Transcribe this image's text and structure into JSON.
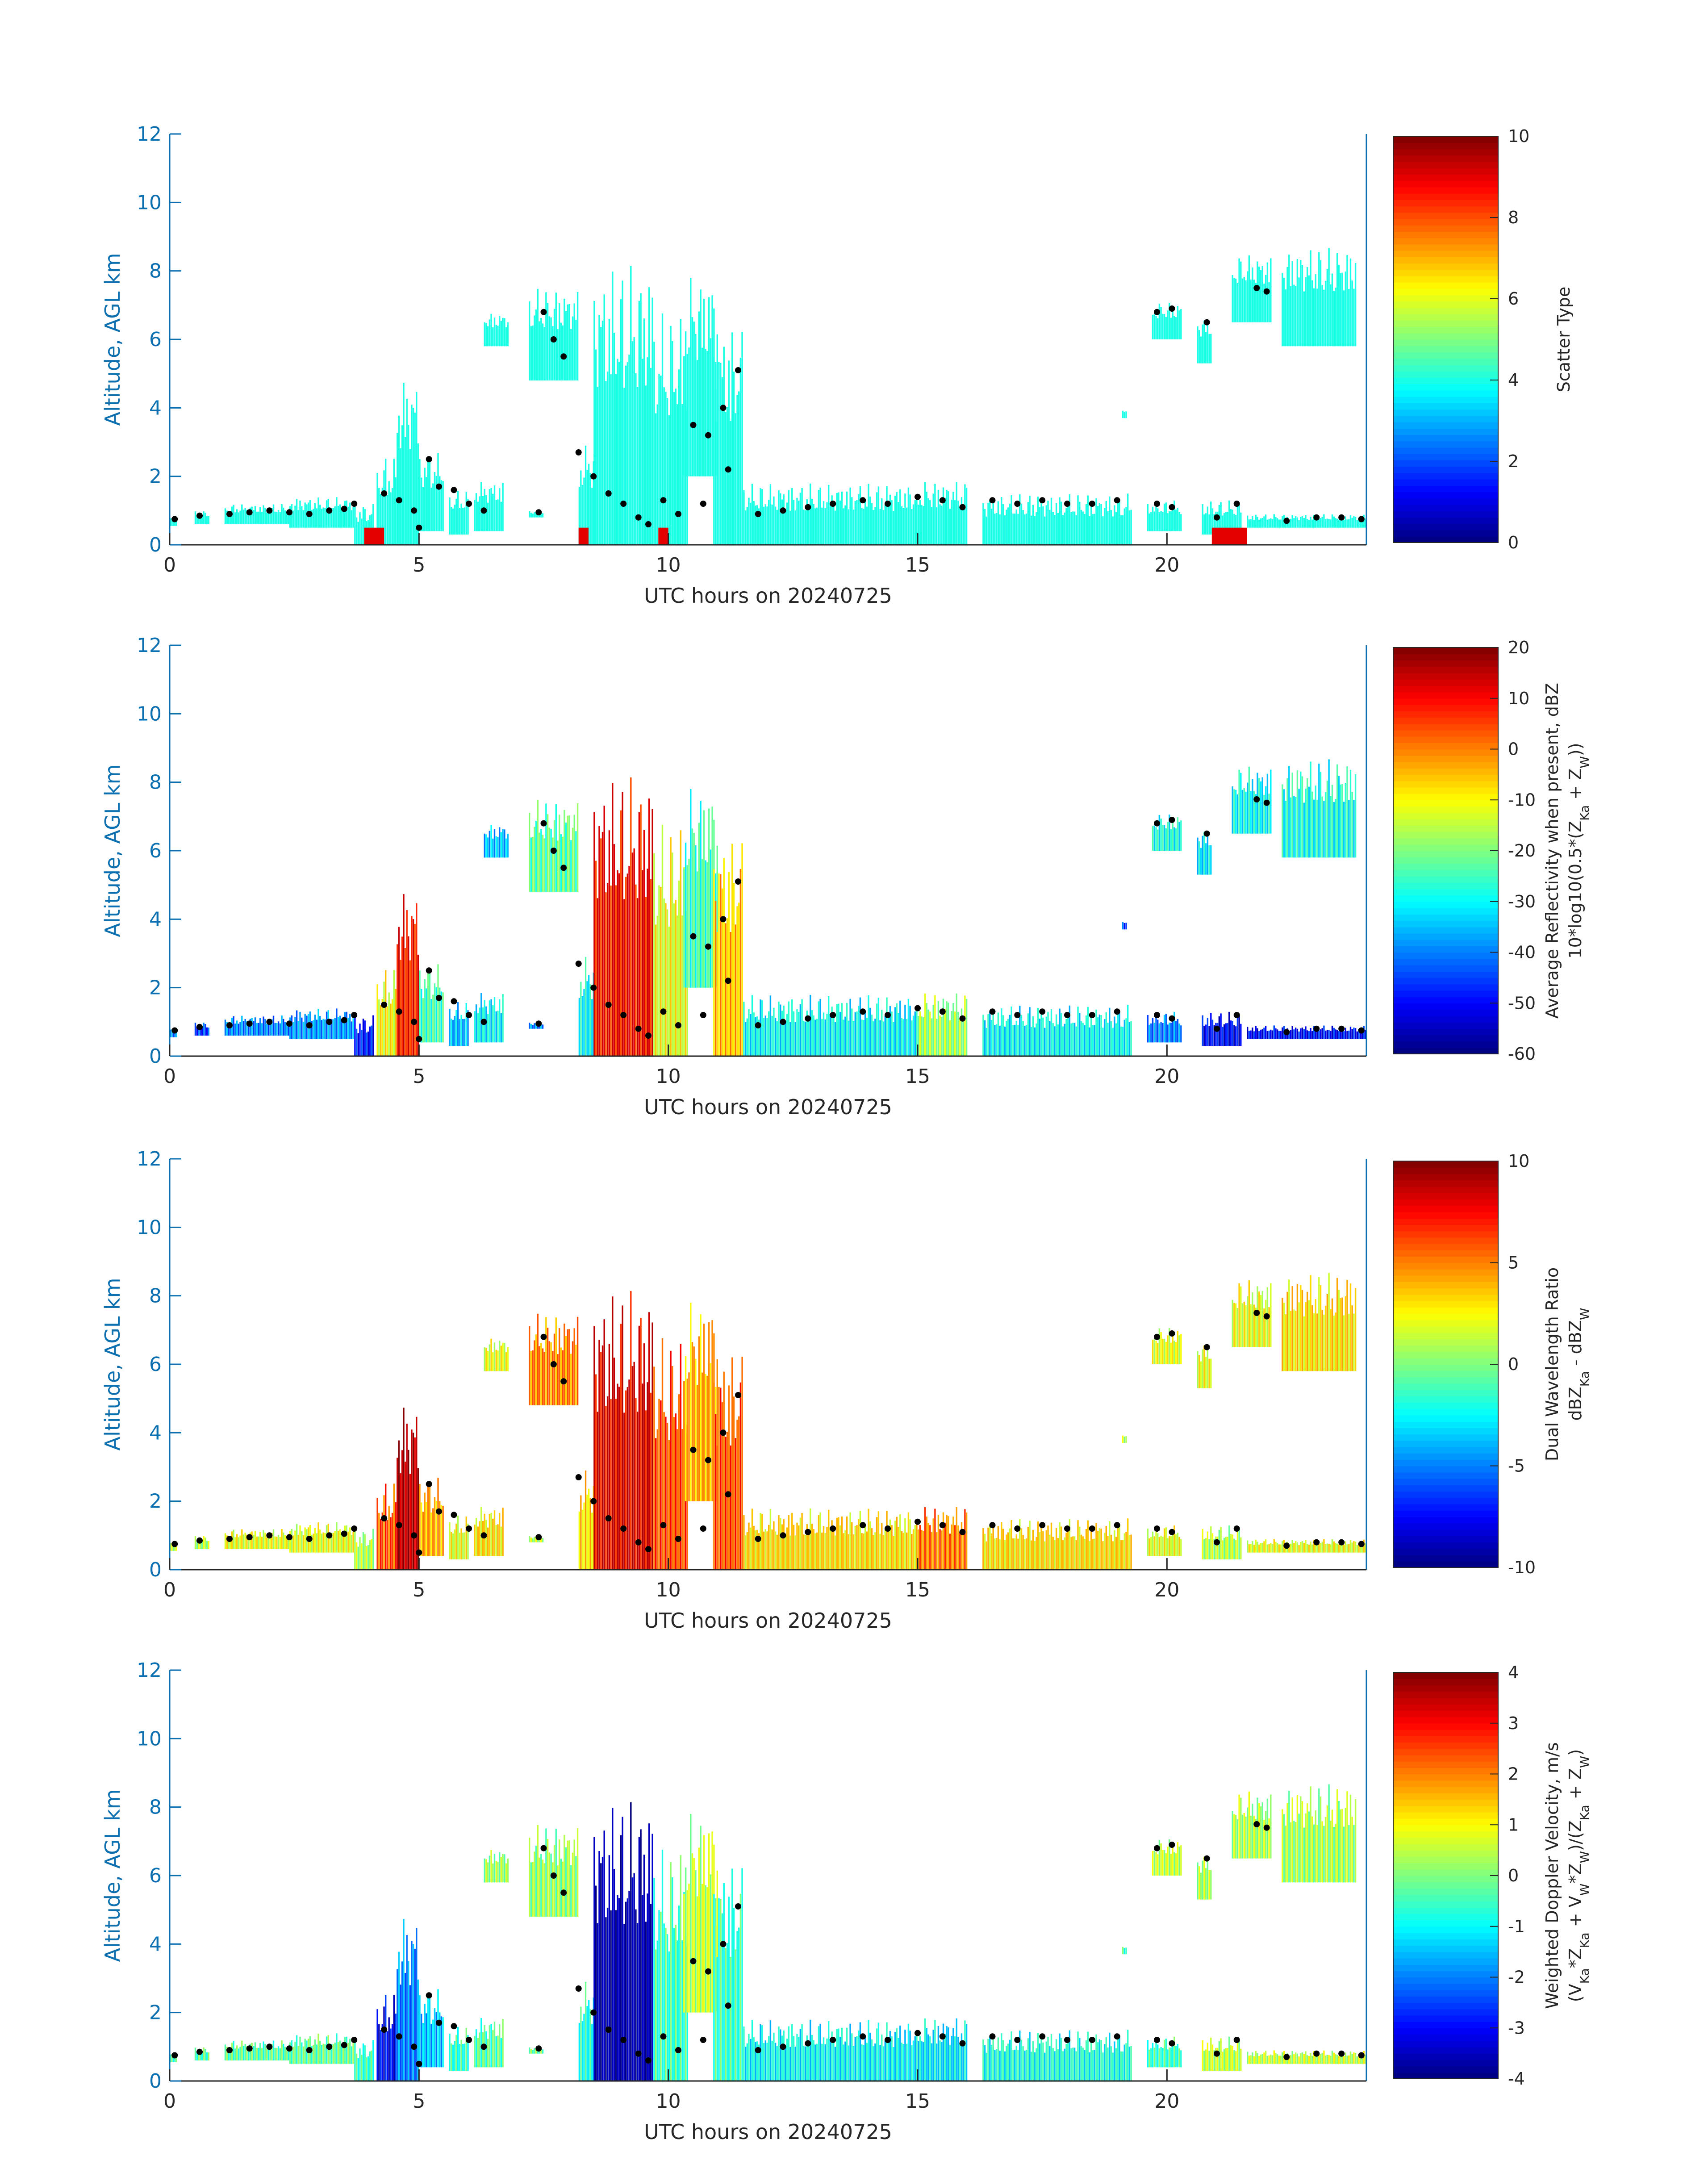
{
  "chart_data": [
    {
      "type": "heatmap",
      "panel": "scatter-type",
      "xlabel": "UTC hours on 20240725",
      "ylabel": "Altitude, AGL km",
      "xlim": [
        0,
        24
      ],
      "ylim": [
        0,
        12
      ],
      "xticks": [
        "0",
        "5",
        "10",
        "15",
        "20"
      ],
      "yticks": [
        "0",
        "2",
        "4",
        "6",
        "8",
        "10",
        "12"
      ],
      "colorbar": {
        "label_lines": [
          "Scatter Type"
        ],
        "range": [
          0,
          10
        ],
        "ticks": [
          "0",
          "2",
          "4",
          "6",
          "8",
          "10"
        ]
      },
      "field": "scatter"
    },
    {
      "type": "heatmap",
      "panel": "reflectivity",
      "xlabel": "UTC hours on 20240725",
      "ylabel": "Altitude, AGL km",
      "xlim": [
        0,
        24
      ],
      "ylim": [
        0,
        12
      ],
      "xticks": [
        "0",
        "5",
        "10",
        "15",
        "20"
      ],
      "yticks": [
        "0",
        "2",
        "4",
        "6",
        "8",
        "10",
        "12"
      ],
      "colorbar": {
        "label_lines": [
          "Average Reflectivity when present, dBZ",
          "10*log10(0.5*(Z_Ka + Z_W))"
        ],
        "range": [
          -60,
          20
        ],
        "ticks": [
          "-60",
          "-50",
          "-40",
          "-30",
          "-20",
          "-10",
          "0",
          "10",
          "20"
        ]
      },
      "field": "reflectivity"
    },
    {
      "type": "heatmap",
      "panel": "dual-wavelength-ratio",
      "xlabel": "UTC hours on 20240725",
      "ylabel": "Altitude, AGL km",
      "xlim": [
        0,
        24
      ],
      "ylim": [
        0,
        12
      ],
      "xticks": [
        "0",
        "5",
        "10",
        "15",
        "20"
      ],
      "yticks": [
        "0",
        "2",
        "4",
        "6",
        "8",
        "10",
        "12"
      ],
      "colorbar": {
        "label_lines": [
          "Dual Wavelength Ratio",
          "dBZ_Ka - dBZ_W"
        ],
        "range": [
          -10,
          10
        ],
        "ticks": [
          "-10",
          "-5",
          "0",
          "5",
          "10"
        ]
      },
      "field": "dwr"
    },
    {
      "type": "heatmap",
      "panel": "doppler-velocity",
      "xlabel": "UTC hours on 20240725",
      "ylabel": "Altitude, AGL km",
      "xlim": [
        0,
        24
      ],
      "ylim": [
        0,
        12
      ],
      "xticks": [
        "0",
        "5",
        "10",
        "15",
        "20"
      ],
      "yticks": [
        "0",
        "2",
        "4",
        "6",
        "8",
        "10",
        "12"
      ],
      "colorbar": {
        "label_lines": [
          "Weighted Doppler Velocity, m/s",
          "(V_Ka*Z_Ka + V_W*Z_W)/(Z_Ka + Z_W)"
        ],
        "range": [
          -4,
          4
        ],
        "ticks": [
          "-4",
          "-3",
          "-2",
          "-1",
          "0",
          "1",
          "2",
          "3",
          "4"
        ]
      },
      "field": "velocity"
    }
  ],
  "cloud_features": [
    {
      "t0": 0.0,
      "t1": 0.15,
      "z0": 0.55,
      "z1": 0.85,
      "scatter": 4,
      "dbz": -40,
      "dwr": 1,
      "vel": -0.5
    },
    {
      "t0": 0.5,
      "t1": 0.8,
      "z0": 0.6,
      "z1": 1.0,
      "scatter": 4,
      "dbz": -45,
      "dwr": 1,
      "vel": -0.3
    },
    {
      "t0": 1.1,
      "t1": 2.4,
      "z0": 0.6,
      "z1": 1.2,
      "scatter": 4,
      "dbz": -40,
      "dwr": 2,
      "vel": -0.3
    },
    {
      "t0": 2.4,
      "t1": 3.7,
      "z0": 0.5,
      "z1": 1.4,
      "scatter": 4,
      "dbz": -38,
      "dwr": 2,
      "vel": -0.2
    },
    {
      "t0": 3.7,
      "t1": 4.1,
      "z0": 0.0,
      "z1": 1.2,
      "scatter": 4,
      "dbz": -48,
      "dwr": 1,
      "vel": -0.5
    },
    {
      "t0": 4.15,
      "t1": 4.55,
      "z0": 0.0,
      "z1": 2.6,
      "scatter": 4,
      "dbz": -10,
      "dwr": 6,
      "vel": -3.0
    },
    {
      "t0": 4.55,
      "t1": 5.0,
      "z0": 0.0,
      "z1": 5.0,
      "scatter": 4,
      "dbz": 8,
      "dwr": 9,
      "vel": -2.0
    },
    {
      "t0": 5.0,
      "t1": 5.5,
      "z0": 0.4,
      "z1": 2.7,
      "scatter": 4,
      "dbz": -25,
      "dwr": 4,
      "vel": -1.5
    },
    {
      "t0": 5.6,
      "t1": 6.0,
      "z0": 0.3,
      "z1": 1.6,
      "scatter": 4,
      "dbz": -35,
      "dwr": 2,
      "vel": -0.6
    },
    {
      "t0": 6.1,
      "t1": 6.7,
      "z0": 0.4,
      "z1": 1.9,
      "scatter": 4,
      "dbz": -30,
      "dwr": 3,
      "vel": -0.3
    },
    {
      "t0": 7.2,
      "t1": 7.5,
      "z0": 0.8,
      "z1": 1.0,
      "scatter": 4,
      "dbz": -40,
      "dwr": 1,
      "vel": -0.2
    },
    {
      "t0": 7.2,
      "t1": 8.2,
      "z0": 4.8,
      "z1": 7.5,
      "scatter": 4,
      "dbz": -22,
      "dwr": 5,
      "vel": 0.2
    },
    {
      "t0": 8.2,
      "t1": 8.55,
      "z0": 0.0,
      "z1": 3.0,
      "scatter": 4,
      "dbz": -30,
      "dwr": 3,
      "vel": -0.8
    },
    {
      "t0": 8.5,
      "t1": 9.7,
      "z0": 0.0,
      "z1": 8.2,
      "scatter": 4,
      "dbz": 10,
      "dwr": 8,
      "vel": -3.8
    },
    {
      "t0": 9.7,
      "t1": 10.4,
      "z0": 0.0,
      "z1": 6.8,
      "scatter": 4,
      "dbz": -12,
      "dwr": 6,
      "vel": -0.5
    },
    {
      "t0": 10.3,
      "t1": 11.0,
      "z0": 2.0,
      "z1": 8.0,
      "scatter": 4,
      "dbz": -25,
      "dwr": 4,
      "vel": 0.5
    },
    {
      "t0": 10.9,
      "t1": 11.5,
      "z0": 0.0,
      "z1": 6.5,
      "scatter": 4,
      "dbz": -5,
      "dwr": 6,
      "vel": -0.5
    },
    {
      "t0": 11.5,
      "t1": 15.0,
      "z0": 0.0,
      "z1": 1.8,
      "scatter": 4,
      "dbz": -30,
      "dwr": 3,
      "vel": -1.0
    },
    {
      "t0": 15.0,
      "t1": 16.0,
      "z0": 0.0,
      "z1": 1.9,
      "scatter": 4,
      "dbz": -18,
      "dwr": 5,
      "vel": -1.2
    },
    {
      "t0": 16.3,
      "t1": 19.3,
      "z0": 0.0,
      "z1": 1.5,
      "scatter": 4,
      "dbz": -30,
      "dwr": 3,
      "vel": -0.8
    },
    {
      "t0": 19.6,
      "t1": 20.3,
      "z0": 0.4,
      "z1": 1.3,
      "scatter": 4,
      "dbz": -40,
      "dwr": 2,
      "vel": -0.5
    },
    {
      "t0": 19.7,
      "t1": 20.3,
      "z0": 6.0,
      "z1": 7.1,
      "scatter": 4,
      "dbz": -28,
      "dwr": 2,
      "vel": 0.5
    },
    {
      "t0": 20.6,
      "t1": 20.9,
      "z0": 5.3,
      "z1": 6.7,
      "scatter": 4,
      "dbz": -32,
      "dwr": 2,
      "vel": 0.3
    },
    {
      "t0": 20.7,
      "t1": 21.5,
      "z0": 0.3,
      "z1": 1.3,
      "scatter": 4,
      "dbz": -50,
      "dwr": 1,
      "vel": 0.5
    },
    {
      "t0": 21.3,
      "t1": 22.1,
      "z0": 6.5,
      "z1": 8.5,
      "scatter": 4,
      "dbz": -30,
      "dwr": 2,
      "vel": 0.3
    },
    {
      "t0": 22.3,
      "t1": 23.8,
      "z0": 5.8,
      "z1": 8.7,
      "scatter": 4,
      "dbz": -28,
      "dwr": 3,
      "vel": 0.3
    },
    {
      "t0": 21.6,
      "t1": 24.0,
      "z0": 0.5,
      "z1": 0.9,
      "scatter": 4,
      "dbz": -50,
      "dwr": 2,
      "vel": 0.5
    },
    {
      "t0": 19.1,
      "t1": 19.2,
      "z0": 3.7,
      "z1": 4.0,
      "scatter": 4,
      "dbz": -45,
      "dwr": 1,
      "vel": -0.5
    },
    {
      "t0": 6.3,
      "t1": 6.8,
      "z0": 5.8,
      "z1": 6.8,
      "scatter": 4,
      "dbz": -35,
      "dwr": 2,
      "vel": 0.2
    }
  ],
  "cloud_base_points": [
    [
      0.1,
      0.75
    ],
    [
      0.6,
      0.85
    ],
    [
      1.2,
      0.9
    ],
    [
      1.6,
      0.95
    ],
    [
      2.0,
      1.0
    ],
    [
      2.4,
      0.95
    ],
    [
      2.8,
      0.9
    ],
    [
      3.2,
      1.0
    ],
    [
      3.5,
      1.05
    ],
    [
      3.7,
      1.2
    ],
    [
      4.3,
      1.5
    ],
    [
      4.6,
      1.3
    ],
    [
      4.9,
      1.0
    ],
    [
      5.0,
      0.5
    ],
    [
      5.2,
      2.5
    ],
    [
      5.4,
      1.7
    ],
    [
      5.7,
      1.6
    ],
    [
      6.0,
      1.2
    ],
    [
      6.3,
      1.0
    ],
    [
      7.4,
      0.95
    ],
    [
      7.5,
      6.8
    ],
    [
      7.7,
      6.0
    ],
    [
      7.9,
      5.5
    ],
    [
      8.2,
      2.7
    ],
    [
      8.5,
      2.0
    ],
    [
      8.8,
      1.5
    ],
    [
      9.1,
      1.2
    ],
    [
      9.4,
      0.8
    ],
    [
      9.6,
      0.6
    ],
    [
      9.9,
      1.3
    ],
    [
      10.2,
      0.9
    ],
    [
      10.5,
      3.5
    ],
    [
      10.8,
      3.2
    ],
    [
      11.1,
      4.0
    ],
    [
      11.4,
      5.1
    ],
    [
      10.7,
      1.2
    ],
    [
      11.2,
      2.2
    ],
    [
      11.8,
      0.9
    ],
    [
      12.3,
      1.0
    ],
    [
      12.8,
      1.1
    ],
    [
      13.3,
      1.2
    ],
    [
      13.9,
      1.3
    ],
    [
      14.4,
      1.2
    ],
    [
      15.0,
      1.4
    ],
    [
      15.5,
      1.3
    ],
    [
      15.9,
      1.1
    ],
    [
      16.5,
      1.3
    ],
    [
      17.0,
      1.2
    ],
    [
      17.5,
      1.3
    ],
    [
      18.0,
      1.2
    ],
    [
      18.5,
      1.2
    ],
    [
      19.0,
      1.3
    ],
    [
      19.8,
      1.2
    ],
    [
      20.1,
      1.1
    ],
    [
      19.8,
      6.8
    ],
    [
      20.1,
      6.9
    ],
    [
      20.8,
      6.5
    ],
    [
      21.0,
      0.8
    ],
    [
      21.4,
      1.2
    ],
    [
      21.8,
      7.5
    ],
    [
      22.0,
      7.4
    ],
    [
      22.4,
      0.7
    ],
    [
      23.0,
      0.8
    ],
    [
      23.5,
      0.8
    ],
    [
      23.9,
      0.75
    ]
  ]
}
